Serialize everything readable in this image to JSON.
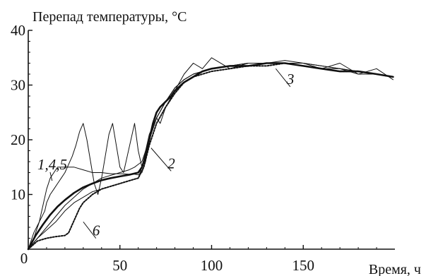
{
  "chart_data": {
    "type": "line",
    "ylabel": "Перепад температуры, °C",
    "xlabel": "Время, ч",
    "xlim": [
      0,
      200
    ],
    "ylim": [
      0,
      40
    ],
    "x_ticks": [
      0,
      50,
      100,
      150
    ],
    "y_ticks": [
      10,
      20,
      30,
      40
    ],
    "x_tick_labels": [
      "0",
      "50",
      "100",
      "150"
    ],
    "y_tick_labels": [
      "10",
      "20",
      "30",
      "40"
    ],
    "grid": false,
    "annotations": [
      {
        "text": "1,4,5",
        "x": 5,
        "y": 14.6,
        "points_to": [
          13,
          12.5
        ]
      },
      {
        "text": "2",
        "x": 76,
        "y": 14.8,
        "points_to": [
          67,
          18.5
        ]
      },
      {
        "text": "3",
        "x": 141,
        "y": 30.2,
        "points_to": [
          135,
          33
        ]
      },
      {
        "text": "6",
        "x": 35,
        "y": 2.5,
        "points_to": [
          30,
          5
        ]
      }
    ],
    "series": [
      {
        "style": "thin",
        "x": [
          0,
          3,
          6,
          9,
          10,
          12,
          14,
          16,
          18,
          20,
          22,
          24,
          26,
          28,
          30,
          32,
          34,
          36,
          38,
          40,
          42,
          44,
          46,
          48,
          50,
          52,
          54,
          56,
          58,
          60,
          62,
          64,
          66,
          68,
          70,
          72,
          75,
          80,
          85,
          90,
          95,
          100,
          110,
          120,
          130,
          140,
          150,
          160,
          170,
          180,
          190,
          199
        ],
        "y": [
          0,
          3,
          5,
          7,
          8.5,
          10,
          11,
          12,
          13,
          14,
          15.5,
          17,
          19,
          21.5,
          23,
          20,
          16,
          12,
          10,
          13,
          17,
          21,
          23,
          19,
          15,
          14,
          17,
          20,
          23,
          18,
          15,
          17,
          20,
          22,
          24,
          23,
          26,
          29,
          32,
          34,
          33,
          35,
          33,
          34,
          34,
          34,
          34,
          33,
          34,
          32,
          33,
          31
        ]
      },
      {
        "style": "bold",
        "x": [
          0,
          4,
          8,
          12,
          16,
          20,
          25,
          30,
          35,
          40,
          45,
          50,
          55,
          60,
          62,
          64,
          66,
          68,
          70,
          72,
          75,
          78,
          80,
          85,
          90,
          95,
          100,
          110,
          120,
          130,
          140,
          150,
          160,
          170,
          180,
          190,
          199
        ],
        "y": [
          0,
          2.5,
          4.5,
          6.3,
          7.8,
          9,
          10.3,
          11.3,
          12,
          12.6,
          13,
          13.3,
          13.6,
          14,
          15,
          17,
          20,
          23,
          25,
          26,
          27,
          28,
          29,
          30.5,
          31.5,
          32.5,
          33,
          33.5,
          33.5,
          34,
          34,
          33.5,
          33,
          32.5,
          32.5,
          32,
          31.5
        ]
      },
      {
        "style": "dotted",
        "x": [
          0,
          5,
          10,
          15,
          20,
          22,
          24,
          26,
          28,
          30,
          35,
          40,
          45,
          50,
          55,
          60,
          63,
          66,
          70,
          75,
          80,
          85,
          90,
          100,
          110,
          120,
          130,
          140,
          150,
          160,
          170,
          180,
          190,
          199
        ],
        "y": [
          0,
          1.5,
          2,
          2.3,
          2.5,
          3,
          4.5,
          6,
          7.5,
          8.5,
          10,
          11,
          11.5,
          12,
          12.5,
          13,
          15,
          19,
          23,
          26,
          28.5,
          30.5,
          31.5,
          32.5,
          33,
          33.5,
          33.5,
          34,
          33.5,
          33,
          32.5,
          32.5,
          32,
          31.5
        ]
      },
      {
        "style": "thin",
        "x": [
          0,
          5,
          10,
          15,
          20,
          25,
          30,
          35,
          40,
          45,
          50,
          55,
          58,
          60,
          62,
          65,
          70,
          75,
          80,
          85,
          90,
          100,
          110,
          120,
          130,
          140,
          150,
          160,
          170,
          180,
          190,
          199
        ],
        "y": [
          0,
          2,
          4,
          6,
          8,
          9.5,
          11,
          12,
          13,
          13.5,
          14,
          14.5,
          15,
          15.5,
          16,
          19,
          24,
          27,
          29.5,
          31,
          32,
          33,
          33.5,
          34,
          34,
          34.5,
          34,
          33.5,
          33,
          32,
          32,
          31.5
        ]
      },
      {
        "style": "thin",
        "x": [
          0,
          3,
          6,
          8,
          10,
          12,
          14,
          16,
          18,
          20,
          25,
          30,
          35,
          40,
          45,
          50,
          55,
          58,
          60,
          62,
          64,
          66,
          70,
          75,
          80,
          85,
          90,
          100,
          110,
          120,
          130,
          140,
          150,
          160,
          170,
          180,
          190,
          199
        ],
        "y": [
          0,
          2,
          5,
          8,
          11,
          13,
          14,
          15,
          15,
          15,
          15,
          14.5,
          14,
          14,
          13.8,
          13.8,
          13.7,
          13.7,
          13.6,
          14,
          16,
          20,
          24,
          27,
          29.5,
          31,
          32,
          33,
          33.5,
          34,
          34,
          34,
          34,
          33.5,
          33,
          32.5,
          32,
          31.5
        ]
      },
      {
        "style": "thin",
        "x": [
          0,
          5,
          10,
          15,
          20,
          25,
          30,
          35,
          40,
          45,
          50,
          55,
          60,
          62,
          64,
          66,
          70,
          75,
          80,
          85,
          90,
          100,
          110,
          120,
          130,
          140,
          150,
          160,
          170,
          180,
          190,
          199
        ],
        "y": [
          0,
          2,
          3.5,
          5,
          7,
          8.5,
          9.5,
          10.5,
          11,
          11.5,
          12,
          12.5,
          13,
          15,
          18,
          21,
          24,
          27,
          29.5,
          31,
          32,
          33,
          33.5,
          34,
          34,
          34,
          33.5,
          33,
          33,
          32.5,
          32,
          31.5
        ]
      }
    ]
  }
}
